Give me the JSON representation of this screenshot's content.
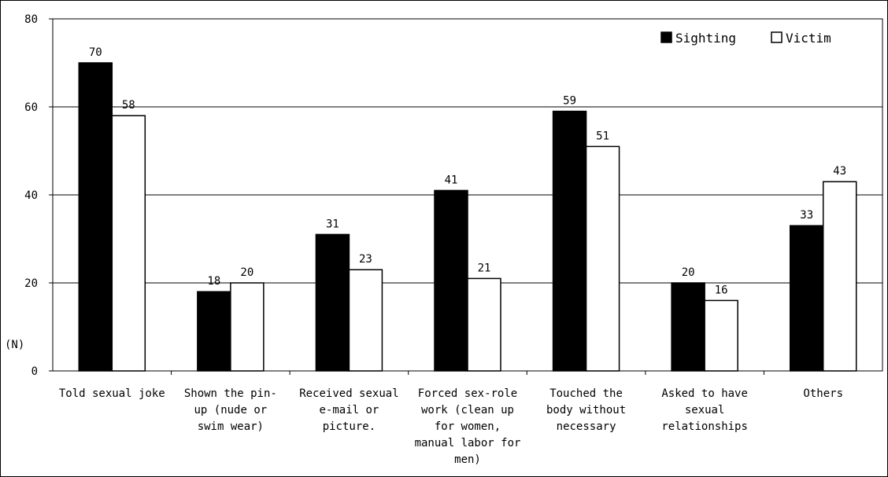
{
  "chart_data": {
    "type": "bar",
    "ylim": [
      0,
      80
    ],
    "yticks": [
      "0",
      "20",
      "40",
      "60",
      "80"
    ],
    "ylabel": "(N)",
    "categories": [
      [
        "Told sexual joke"
      ],
      [
        "Shown the pin-",
        "up (nude or",
        "swim wear)"
      ],
      [
        "Received sexual",
        "e-mail or",
        "picture."
      ],
      [
        "Forced sex-role",
        "work (clean up",
        "for women,",
        "manual labor for",
        "men)"
      ],
      [
        "Touched the",
        "body without",
        "necessary"
      ],
      [
        "Asked to have",
        "sexual",
        "relationships"
      ],
      [
        "Others"
      ]
    ],
    "series": [
      {
        "name": "Sighting",
        "values": [
          70,
          18,
          31,
          41,
          59,
          20,
          33
        ],
        "color": "#000000"
      },
      {
        "name": "Victim",
        "values": [
          58,
          20,
          23,
          21,
          51,
          16,
          43
        ],
        "color": "#ffffff"
      }
    ],
    "legend_position": "top-right",
    "grid": true
  }
}
